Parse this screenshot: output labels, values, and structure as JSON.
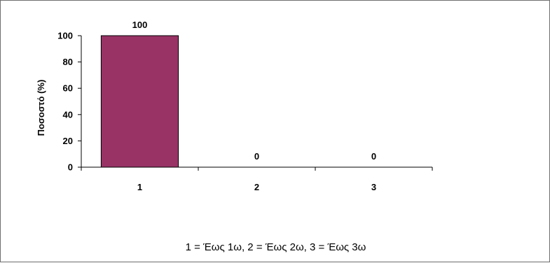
{
  "chart_data": {
    "type": "bar",
    "categories": [
      "1",
      "2",
      "3"
    ],
    "values": [
      100,
      0,
      0
    ],
    "data_labels": [
      "100",
      "0",
      "0"
    ],
    "ylabel": "Ποσοστό (%)",
    "xlabel": "",
    "ylim": [
      0,
      100
    ],
    "yticks": [
      "0",
      "20",
      "40",
      "60",
      "80",
      "100"
    ],
    "grid": false,
    "legend": "none",
    "bar_color": "#993366",
    "caption": "1 = Έως 1ω, 2 = Έως 2ω, 3 = Έως 3ω"
  }
}
